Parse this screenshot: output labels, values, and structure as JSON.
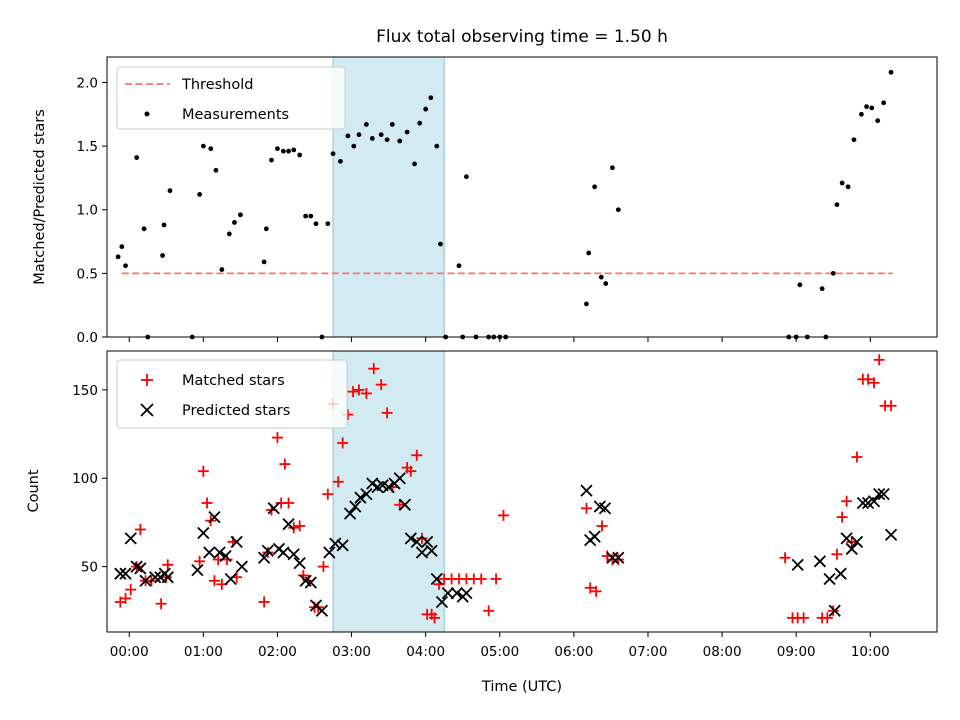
{
  "chart_data": [
    {
      "type": "scatter",
      "title": "Flux total observing time = 1.50 h",
      "ylabel": "Matched/Predicted stars",
      "ylim": [
        0,
        2.2
      ],
      "yticks": [
        0.0,
        0.5,
        1.0,
        1.5,
        2.0
      ],
      "ytick_labels": [
        "0.0",
        "0.5",
        "1.0",
        "1.5",
        "2.0"
      ],
      "xlim": [
        -0.3,
        10.9
      ],
      "x_units": "hours UTC",
      "highlight_span": [
        2.75,
        4.25
      ],
      "highlight_color": "#add8e6",
      "threshold": {
        "name": "Threshold",
        "y": 0.5,
        "x_range": [
          -0.1,
          10.3
        ],
        "color": "#ff7070"
      },
      "series": [
        {
          "name": "Measurements",
          "color": "#000000",
          "marker": "dot",
          "x": [
            -0.15,
            -0.1,
            -0.05,
            0.1,
            0.2,
            0.25,
            0.45,
            0.47,
            0.55,
            0.85,
            0.95,
            1.0,
            1.1,
            1.17,
            1.25,
            1.35,
            1.42,
            1.5,
            1.82,
            1.85,
            1.92,
            2.0,
            2.08,
            2.15,
            2.22,
            2.3,
            2.38,
            2.45,
            2.52,
            2.6,
            2.68,
            2.75,
            2.85,
            2.95,
            3.03,
            3.1,
            3.2,
            3.28,
            3.4,
            3.48,
            3.55,
            3.65,
            3.75,
            3.85,
            3.92,
            4.0,
            4.07,
            4.15,
            4.2,
            4.27,
            4.45,
            4.5,
            4.55,
            4.68,
            4.85,
            4.92,
            5.0,
            5.08,
            6.17,
            6.2,
            6.28,
            6.37,
            6.43,
            6.52,
            6.6,
            8.9,
            9.0,
            9.05,
            9.15,
            9.35,
            9.4,
            9.5,
            9.55,
            9.62,
            9.7,
            9.78,
            9.88,
            9.95,
            10.02,
            10.1,
            10.18,
            10.28
          ],
          "y": [
            0.63,
            0.71,
            0.56,
            1.41,
            0.85,
            0.0,
            0.64,
            0.88,
            1.15,
            0.0,
            1.12,
            1.5,
            1.48,
            1.31,
            0.53,
            0.81,
            0.9,
            0.96,
            0.59,
            0.85,
            1.39,
            1.48,
            1.46,
            1.46,
            1.47,
            1.43,
            0.95,
            0.95,
            0.89,
            0.0,
            0.89,
            1.44,
            1.38,
            1.58,
            1.5,
            1.59,
            1.67,
            1.56,
            1.59,
            1.55,
            1.67,
            1.54,
            1.61,
            1.36,
            1.68,
            1.79,
            1.88,
            1.5,
            0.73,
            0.0,
            0.56,
            0.0,
            1.26,
            0.0,
            0.0,
            0.0,
            0.0,
            0.0,
            0.26,
            0.66,
            1.18,
            0.47,
            0.42,
            1.33,
            1.0,
            0.0,
            0.0,
            0.41,
            0.0,
            0.38,
            0.0,
            0.5,
            1.04,
            1.21,
            1.18,
            1.55,
            1.75,
            1.81,
            1.8,
            1.7,
            1.84,
            2.08
          ]
        }
      ],
      "legend": {
        "placement": "upper-left",
        "entries": [
          "Threshold",
          "Measurements"
        ]
      }
    },
    {
      "type": "scatter",
      "xlabel": "Time (UTC)",
      "ylabel": "Count",
      "ylim": [
        13,
        172
      ],
      "yticks": [
        50,
        100,
        150
      ],
      "ytick_labels": [
        "50",
        "100",
        "150"
      ],
      "xlim": [
        -0.3,
        10.9
      ],
      "xticks": [
        0,
        1,
        2,
        3,
        4,
        5,
        6,
        7,
        8,
        9,
        10
      ],
      "xtick_labels": [
        "00:00",
        "01:00",
        "02:00",
        "03:00",
        "04:00",
        "05:00",
        "06:00",
        "07:00",
        "08:00",
        "09:00",
        "10:00"
      ],
      "highlight_span": [
        2.75,
        4.25
      ],
      "highlight_color": "#add8e6",
      "series": [
        {
          "name": "Matched stars",
          "color": "#ff0000",
          "marker": "plus",
          "x": [
            -0.12,
            -0.05,
            0.02,
            0.1,
            0.15,
            0.22,
            0.3,
            0.43,
            0.5,
            0.52,
            0.95,
            1.0,
            1.05,
            1.1,
            1.15,
            1.2,
            1.25,
            1.32,
            1.4,
            1.45,
            1.82,
            1.87,
            1.92,
            2.0,
            2.05,
            2.1,
            2.15,
            2.22,
            2.3,
            2.35,
            2.42,
            2.5,
            2.55,
            2.62,
            2.68,
            2.75,
            2.82,
            2.88,
            2.95,
            3.02,
            3.1,
            3.2,
            3.3,
            3.4,
            3.48,
            3.55,
            3.65,
            3.75,
            3.8,
            3.88,
            3.95,
            4.02,
            4.08,
            4.12,
            4.18,
            4.25,
            4.35,
            4.45,
            4.55,
            4.65,
            4.75,
            4.85,
            4.95,
            5.05,
            6.17,
            6.22,
            6.3,
            6.38,
            6.45,
            6.52,
            6.6,
            8.85,
            8.95,
            9.02,
            9.1,
            9.35,
            9.42,
            9.5,
            9.55,
            9.62,
            9.68,
            9.75,
            9.82,
            9.9,
            9.97,
            10.05,
            10.12,
            10.2,
            10.28
          ],
          "y": [
            30,
            32,
            37,
            50,
            71,
            42,
            42,
            29,
            44,
            51,
            53,
            104,
            86,
            76,
            42,
            54,
            40,
            54,
            64,
            44,
            30,
            58,
            82,
            123,
            86,
            108,
            86,
            72,
            73,
            45,
            42,
            27,
            27,
            50,
            91,
            142,
            98,
            120,
            136,
            149,
            150,
            148,
            162,
            153,
            137,
            95,
            85,
            106,
            104,
            113,
            66,
            23,
            23,
            21,
            40,
            43,
            43,
            43,
            43,
            43,
            43,
            25,
            43,
            79,
            83,
            38,
            36,
            73,
            56,
            54,
            54,
            55,
            21,
            21,
            21,
            21,
            21,
            25,
            57,
            78,
            87,
            64,
            112,
            156,
            156,
            154,
            167,
            141,
            141
          ],
          "_note": "values read from plot"
        },
        {
          "name": "Predicted stars",
          "color": "#000000",
          "marker": "x",
          "x": [
            -0.12,
            -0.05,
            0.02,
            0.1,
            0.15,
            0.22,
            0.35,
            0.42,
            0.48,
            0.52,
            0.92,
            1.0,
            1.08,
            1.15,
            1.22,
            1.3,
            1.37,
            1.45,
            1.52,
            1.82,
            1.87,
            1.95,
            2.02,
            2.08,
            2.15,
            2.22,
            2.3,
            2.38,
            2.45,
            2.52,
            2.6,
            2.7,
            2.78,
            2.88,
            2.98,
            3.05,
            3.12,
            3.2,
            3.28,
            3.35,
            3.42,
            3.5,
            3.58,
            3.65,
            3.72,
            3.8,
            3.88,
            3.95,
            4.02,
            4.08,
            4.15,
            4.22,
            4.3,
            4.42,
            4.5,
            4.55,
            6.17,
            6.22,
            6.28,
            6.35,
            6.42,
            6.52,
            6.6,
            9.02,
            9.32,
            9.45,
            9.52,
            9.6,
            9.68,
            9.75,
            9.82,
            9.9,
            9.97,
            10.05,
            10.12,
            10.18,
            10.28
          ],
          "y": [
            46,
            46,
            66,
            50,
            49,
            42,
            44,
            44,
            46,
            44,
            48,
            69,
            58,
            78,
            58,
            56,
            43,
            64,
            50,
            55,
            59,
            83,
            60,
            58,
            74,
            57,
            52,
            42,
            41,
            28,
            25,
            58,
            63,
            62,
            80,
            84,
            89,
            91,
            97,
            95,
            96,
            95,
            97,
            100,
            85,
            66,
            64,
            58,
            64,
            59,
            43,
            30,
            35,
            35,
            33,
            35,
            93,
            65,
            67,
            84,
            83,
            55,
            55,
            51,
            53,
            43,
            25,
            46,
            66,
            60,
            64,
            86,
            86,
            87,
            91,
            91,
            68
          ]
        }
      ],
      "legend": {
        "placement": "upper-left",
        "entries": [
          "Matched stars",
          "Predicted stars"
        ]
      }
    }
  ]
}
